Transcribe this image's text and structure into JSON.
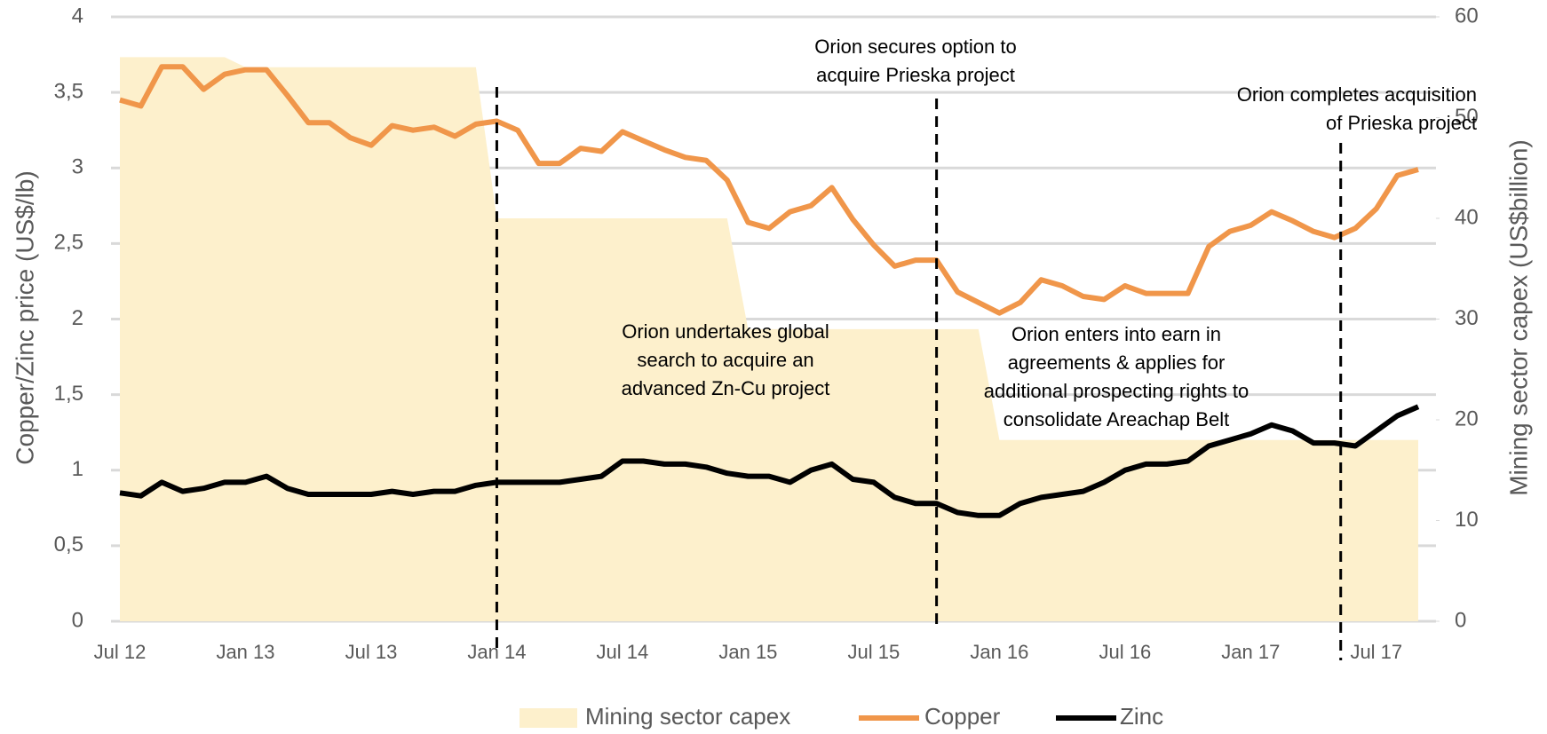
{
  "chart_data": {
    "type": "line",
    "categories": [
      "Jul 12",
      null,
      null,
      null,
      null,
      null,
      "Jan 13",
      null,
      null,
      null,
      null,
      null,
      "Jul 13",
      null,
      null,
      null,
      null,
      null,
      "Jan 14",
      null,
      null,
      null,
      null,
      null,
      "Jul 14",
      null,
      null,
      null,
      null,
      null,
      "Jan 15",
      null,
      null,
      null,
      null,
      null,
      "Jul 15",
      null,
      null,
      null,
      null,
      null,
      "Jan 16",
      null,
      null,
      null,
      null,
      null,
      "Jul 16",
      null,
      null,
      null,
      null,
      null,
      "Jan 17",
      null,
      null,
      null,
      null,
      null,
      "Jul 17",
      null,
      null
    ],
    "series": [
      {
        "name": "Mining sector capex",
        "color": "#fdf0cc",
        "axis": "y2",
        "area": true,
        "values": [
          56,
          56,
          56,
          56,
          56,
          56,
          55,
          55,
          55,
          55,
          55,
          55,
          55,
          55,
          55,
          55,
          55,
          55,
          40,
          40,
          40,
          40,
          40,
          40,
          40,
          40,
          40,
          40,
          40,
          40,
          29,
          29,
          29,
          29,
          29,
          29,
          29,
          29,
          29,
          29,
          29,
          29,
          18,
          18,
          18,
          18,
          18,
          18,
          18,
          18,
          18,
          18,
          18,
          18,
          18,
          18,
          18,
          18,
          18,
          18,
          18,
          18,
          18
        ]
      },
      {
        "name": "Copper",
        "color": "#f0964a",
        "values": [
          3.45,
          3.41,
          3.67,
          3.67,
          3.52,
          3.62,
          3.65,
          3.65,
          3.48,
          3.3,
          3.3,
          3.2,
          3.15,
          3.28,
          3.25,
          3.27,
          3.21,
          3.29,
          3.31,
          3.25,
          3.03,
          3.03,
          3.13,
          3.11,
          3.24,
          3.18,
          3.12,
          3.07,
          3.05,
          2.92,
          2.64,
          2.6,
          2.71,
          2.75,
          2.87,
          2.66,
          2.49,
          2.35,
          2.39,
          2.39,
          2.18,
          2.11,
          2.04,
          2.11,
          2.26,
          2.22,
          2.15,
          2.13,
          2.22,
          2.17,
          2.17,
          2.17,
          2.48,
          2.58,
          2.62,
          2.71,
          2.65,
          2.58,
          2.54,
          2.6,
          2.73,
          2.95,
          2.99
        ]
      },
      {
        "name": "Zinc",
        "color": "#000000",
        "values": [
          0.85,
          0.83,
          0.92,
          0.86,
          0.88,
          0.92,
          0.92,
          0.96,
          0.88,
          0.84,
          0.84,
          0.84,
          0.84,
          0.86,
          0.84,
          0.86,
          0.86,
          0.9,
          0.92,
          0.92,
          0.92,
          0.92,
          0.94,
          0.96,
          1.06,
          1.06,
          1.04,
          1.04,
          1.02,
          0.98,
          0.96,
          0.96,
          0.92,
          1.0,
          1.04,
          0.94,
          0.92,
          0.82,
          0.78,
          0.78,
          0.72,
          0.7,
          0.7,
          0.78,
          0.82,
          0.84,
          0.86,
          0.92,
          1.0,
          1.04,
          1.04,
          1.06,
          1.16,
          1.2,
          1.24,
          1.3,
          1.26,
          1.18,
          1.18,
          1.16,
          1.26,
          1.36,
          1.42
        ]
      }
    ],
    "ylabel": "Copper/Zinc price (US$/lb)",
    "y2label": "Mining sector capex (US$billion)",
    "ylim": [
      0,
      4
    ],
    "yticks": [
      0,
      {
        "value": 0.5,
        "label": "0,5"
      },
      1,
      {
        "value": 1.5,
        "label": "1,5"
      },
      2,
      {
        "value": 2.5,
        "label": "2,5"
      },
      3,
      {
        "value": 3.5,
        "label": "3,5"
      },
      4
    ],
    "y2lim": [
      0,
      60
    ],
    "y2ticks": [
      0,
      10,
      20,
      30,
      40,
      50,
      60
    ],
    "grid": true,
    "legend": "bottom",
    "annotations": [
      {
        "lines": [
          "Orion undertakes global",
          "search to acquire an",
          "advanced Zn-Cu project"
        ]
      },
      {
        "lines": [
          "Orion secures option to",
          "acquire Prieska project"
        ]
      },
      {
        "lines": [
          "Orion completes acquisition",
          "of Prieska project"
        ]
      },
      {
        "lines": [
          "Orion enters into earn in",
          "agreements & applies for",
          "additional prospecting rights to",
          "consolidate Areachap Belt"
        ]
      }
    ],
    "events": [
      {
        "x": 18
      },
      {
        "x": 39
      },
      {
        "x": 58.3
      }
    ]
  }
}
